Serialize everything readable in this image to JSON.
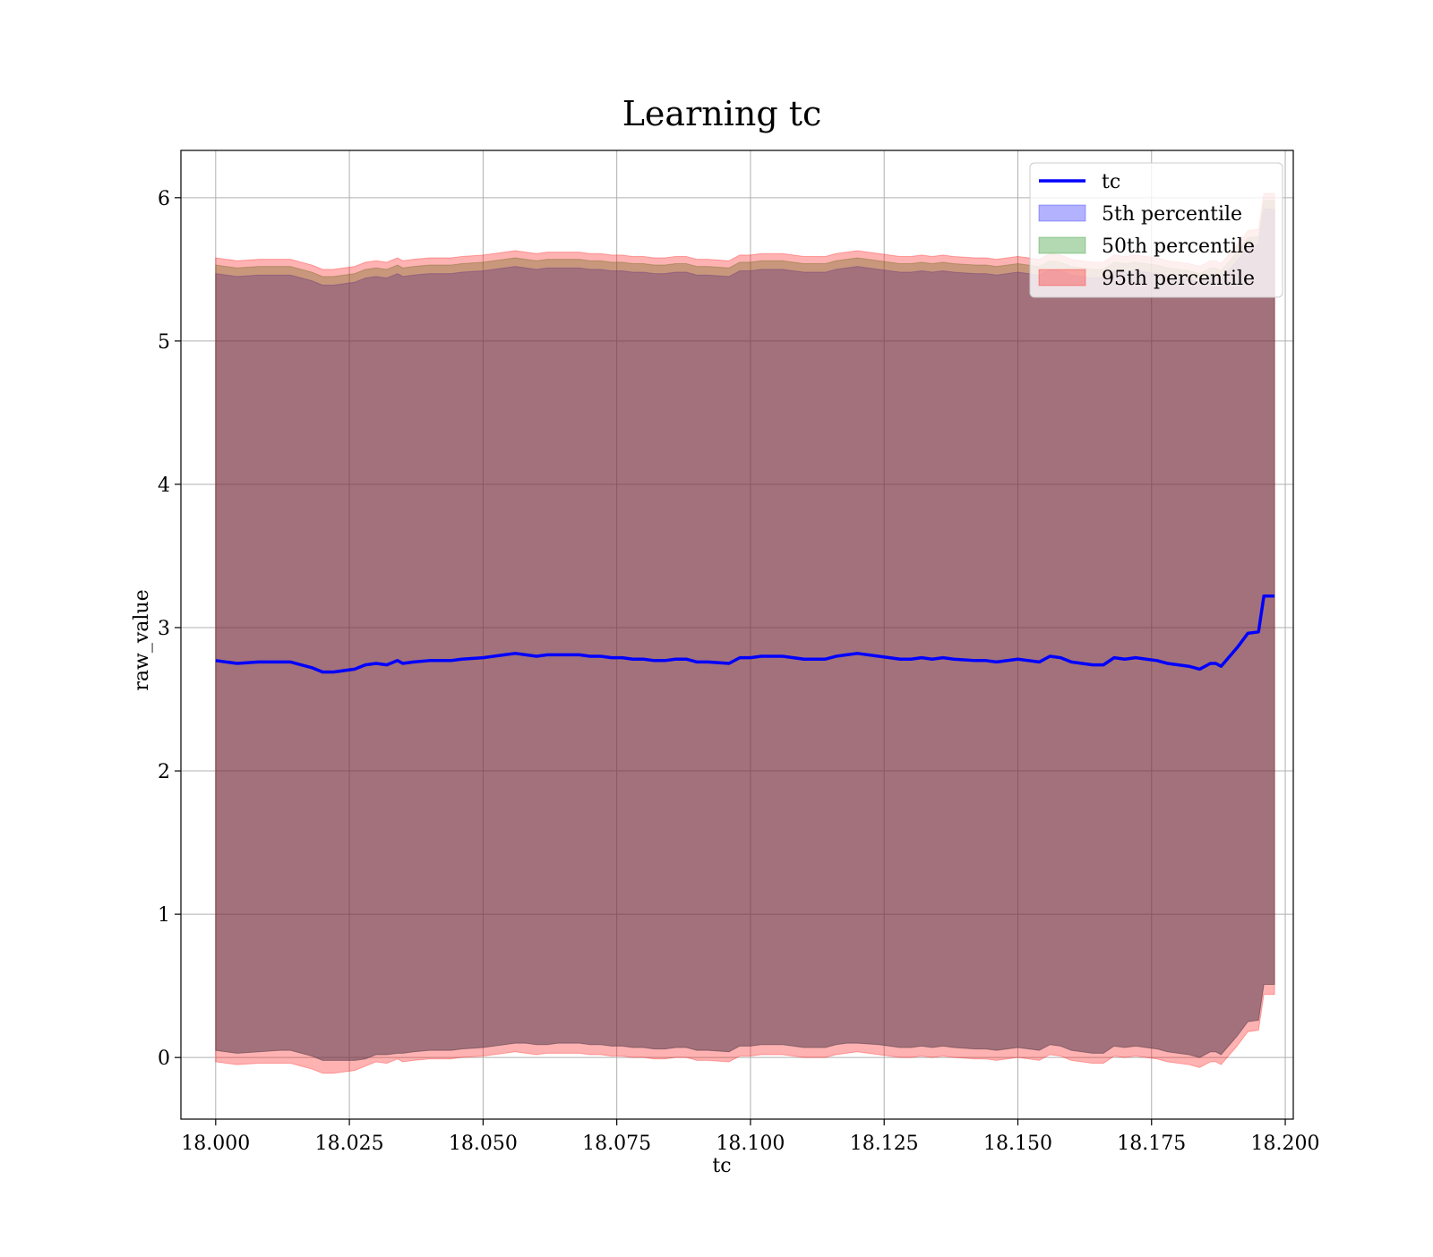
{
  "chart_data": {
    "type": "line",
    "title": "Learning tc",
    "xlabel": "tc",
    "ylabel": "raw_value",
    "xlim": [
      17.9935,
      18.2015
    ],
    "ylim": [
      -0.43,
      6.33
    ],
    "grid": true,
    "legend_position": "top-right",
    "x_ticks": [
      18.0,
      18.025,
      18.05,
      18.075,
      18.1,
      18.125,
      18.15,
      18.175,
      18.2
    ],
    "x_tick_labels": [
      "18.000",
      "18.025",
      "18.050",
      "18.075",
      "18.100",
      "18.125",
      "18.150",
      "18.175",
      "18.200"
    ],
    "y_ticks": [
      0,
      1,
      2,
      3,
      4,
      5,
      6
    ],
    "y_tick_labels": [
      "0",
      "1",
      "2",
      "3",
      "4",
      "5",
      "6"
    ],
    "x": [
      18.0,
      18.004,
      18.008,
      18.012,
      18.014,
      18.018,
      18.02,
      18.022,
      18.026,
      18.028,
      18.03,
      18.032,
      18.034,
      18.035,
      18.037,
      18.04,
      18.044,
      18.046,
      18.05,
      18.052,
      18.054,
      18.056,
      18.058,
      18.06,
      18.062,
      18.064,
      18.066,
      18.068,
      18.07,
      18.072,
      18.074,
      18.076,
      18.078,
      18.08,
      18.082,
      18.084,
      18.086,
      18.088,
      18.09,
      18.092,
      18.096,
      18.098,
      18.1,
      18.102,
      18.104,
      18.106,
      18.108,
      18.11,
      18.112,
      18.114,
      18.116,
      18.118,
      18.12,
      18.124,
      18.128,
      18.13,
      18.132,
      18.134,
      18.136,
      18.138,
      18.142,
      18.144,
      18.146,
      18.15,
      18.154,
      18.156,
      18.158,
      18.16,
      18.162,
      18.164,
      18.166,
      18.168,
      18.17,
      18.172,
      18.174,
      18.176,
      18.178,
      18.182,
      18.184,
      18.186,
      18.187,
      18.188,
      18.191,
      18.193,
      18.195,
      18.196,
      18.197,
      18.198
    ],
    "series": [
      {
        "name": "tc",
        "kind": "line",
        "color": "#0000ff",
        "values": [
          2.77,
          2.75,
          2.76,
          2.76,
          2.76,
          2.72,
          2.69,
          2.69,
          2.71,
          2.74,
          2.75,
          2.74,
          2.77,
          2.75,
          2.76,
          2.77,
          2.77,
          2.78,
          2.79,
          2.8,
          2.81,
          2.82,
          2.81,
          2.8,
          2.81,
          2.81,
          2.81,
          2.81,
          2.8,
          2.8,
          2.79,
          2.79,
          2.78,
          2.78,
          2.77,
          2.77,
          2.78,
          2.78,
          2.76,
          2.76,
          2.75,
          2.79,
          2.79,
          2.8,
          2.8,
          2.8,
          2.79,
          2.78,
          2.78,
          2.78,
          2.8,
          2.81,
          2.82,
          2.8,
          2.78,
          2.78,
          2.79,
          2.78,
          2.79,
          2.78,
          2.77,
          2.77,
          2.76,
          2.78,
          2.76,
          2.8,
          2.79,
          2.76,
          2.75,
          2.74,
          2.74,
          2.79,
          2.78,
          2.79,
          2.78,
          2.77,
          2.75,
          2.73,
          2.71,
          2.75,
          2.75,
          2.73,
          2.86,
          2.96,
          2.97,
          3.22,
          3.22,
          3.22
        ]
      },
      {
        "name": "5th percentile",
        "kind": "band",
        "color": "#0000ff",
        "lower": [
          0.05,
          0.03,
          0.04,
          0.05,
          0.05,
          0.01,
          -0.02,
          -0.02,
          -0.02,
          -0.01,
          0.02,
          0.02,
          0.03,
          0.03,
          0.04,
          0.05,
          0.05,
          0.06,
          0.07,
          0.08,
          0.09,
          0.1,
          0.1,
          0.09,
          0.09,
          0.1,
          0.1,
          0.1,
          0.09,
          0.09,
          0.08,
          0.08,
          0.07,
          0.07,
          0.06,
          0.06,
          0.07,
          0.07,
          0.05,
          0.05,
          0.04,
          0.08,
          0.08,
          0.09,
          0.09,
          0.09,
          0.08,
          0.07,
          0.07,
          0.07,
          0.09,
          0.1,
          0.1,
          0.09,
          0.07,
          0.07,
          0.08,
          0.07,
          0.08,
          0.07,
          0.06,
          0.06,
          0.05,
          0.07,
          0.05,
          0.09,
          0.08,
          0.05,
          0.04,
          0.03,
          0.03,
          0.08,
          0.07,
          0.08,
          0.07,
          0.06,
          0.04,
          0.02,
          0.0,
          0.04,
          0.04,
          0.02,
          0.15,
          0.25,
          0.26,
          0.51,
          0.51,
          0.51
        ],
        "upper": [
          5.47,
          5.45,
          5.46,
          5.46,
          5.46,
          5.42,
          5.39,
          5.39,
          5.41,
          5.44,
          5.45,
          5.44,
          5.47,
          5.45,
          5.46,
          5.47,
          5.47,
          5.48,
          5.49,
          5.5,
          5.51,
          5.52,
          5.51,
          5.5,
          5.51,
          5.51,
          5.51,
          5.51,
          5.5,
          5.5,
          5.49,
          5.49,
          5.48,
          5.48,
          5.47,
          5.47,
          5.48,
          5.48,
          5.46,
          5.46,
          5.45,
          5.49,
          5.49,
          5.5,
          5.5,
          5.5,
          5.49,
          5.48,
          5.48,
          5.48,
          5.5,
          5.51,
          5.52,
          5.5,
          5.48,
          5.48,
          5.49,
          5.48,
          5.49,
          5.48,
          5.47,
          5.47,
          5.46,
          5.48,
          5.46,
          5.5,
          5.49,
          5.46,
          5.45,
          5.44,
          5.44,
          5.49,
          5.48,
          5.49,
          5.48,
          5.47,
          5.45,
          5.43,
          5.41,
          5.45,
          5.45,
          5.43,
          5.56,
          5.66,
          5.67,
          5.92,
          5.92,
          5.92
        ]
      },
      {
        "name": "50th percentile",
        "kind": "band",
        "color": "#008000",
        "lower": [
          0.05,
          0.03,
          0.04,
          0.05,
          0.05,
          0.01,
          -0.02,
          -0.02,
          -0.02,
          -0.01,
          0.02,
          0.02,
          0.03,
          0.03,
          0.04,
          0.05,
          0.05,
          0.06,
          0.07,
          0.08,
          0.09,
          0.1,
          0.1,
          0.09,
          0.09,
          0.1,
          0.1,
          0.1,
          0.09,
          0.09,
          0.08,
          0.08,
          0.07,
          0.07,
          0.06,
          0.06,
          0.07,
          0.07,
          0.05,
          0.05,
          0.04,
          0.08,
          0.08,
          0.09,
          0.09,
          0.09,
          0.08,
          0.07,
          0.07,
          0.07,
          0.09,
          0.1,
          0.1,
          0.09,
          0.07,
          0.07,
          0.08,
          0.07,
          0.08,
          0.07,
          0.06,
          0.06,
          0.05,
          0.07,
          0.05,
          0.09,
          0.08,
          0.05,
          0.04,
          0.03,
          0.03,
          0.08,
          0.07,
          0.08,
          0.07,
          0.06,
          0.04,
          0.02,
          0.0,
          0.04,
          0.04,
          0.02,
          0.15,
          0.25,
          0.26,
          0.51,
          0.51,
          0.51
        ],
        "upper": [
          5.53,
          5.51,
          5.52,
          5.52,
          5.52,
          5.48,
          5.45,
          5.45,
          5.47,
          5.5,
          5.51,
          5.5,
          5.53,
          5.51,
          5.52,
          5.53,
          5.53,
          5.54,
          5.55,
          5.56,
          5.57,
          5.58,
          5.57,
          5.56,
          5.57,
          5.57,
          5.57,
          5.57,
          5.56,
          5.56,
          5.55,
          5.55,
          5.54,
          5.54,
          5.53,
          5.53,
          5.54,
          5.54,
          5.52,
          5.52,
          5.51,
          5.55,
          5.55,
          5.56,
          5.56,
          5.56,
          5.55,
          5.54,
          5.54,
          5.54,
          5.56,
          5.57,
          5.58,
          5.56,
          5.54,
          5.54,
          5.55,
          5.54,
          5.55,
          5.54,
          5.53,
          5.53,
          5.52,
          5.54,
          5.52,
          5.56,
          5.55,
          5.52,
          5.51,
          5.5,
          5.5,
          5.55,
          5.54,
          5.55,
          5.54,
          5.53,
          5.51,
          5.49,
          5.47,
          5.51,
          5.51,
          5.49,
          5.62,
          5.72,
          5.73,
          5.98,
          5.98,
          5.98
        ]
      },
      {
        "name": "95th percentile",
        "kind": "band",
        "color": "#ff0000",
        "lower": [
          -0.03,
          -0.05,
          -0.04,
          -0.04,
          -0.04,
          -0.08,
          -0.11,
          -0.11,
          -0.09,
          -0.06,
          -0.03,
          -0.04,
          -0.01,
          -0.03,
          -0.02,
          -0.01,
          -0.01,
          0.0,
          0.01,
          0.02,
          0.03,
          0.04,
          0.03,
          0.02,
          0.03,
          0.03,
          0.03,
          0.03,
          0.02,
          0.02,
          0.01,
          0.01,
          0.0,
          0.0,
          -0.01,
          -0.01,
          0.0,
          0.0,
          -0.02,
          -0.02,
          -0.03,
          0.01,
          0.01,
          0.02,
          0.02,
          0.02,
          0.01,
          0.0,
          0.0,
          0.0,
          0.02,
          0.03,
          0.04,
          0.02,
          0.0,
          0.0,
          0.01,
          0.0,
          0.01,
          0.0,
          -0.01,
          -0.01,
          -0.02,
          0.0,
          -0.02,
          0.02,
          0.01,
          -0.02,
          -0.03,
          -0.04,
          -0.04,
          0.01,
          0.0,
          0.01,
          0.0,
          -0.01,
          -0.03,
          -0.05,
          -0.07,
          -0.03,
          -0.03,
          -0.05,
          0.08,
          0.18,
          0.19,
          0.44,
          0.44,
          0.44
        ],
        "upper": [
          5.58,
          5.56,
          5.57,
          5.57,
          5.57,
          5.53,
          5.5,
          5.5,
          5.52,
          5.55,
          5.56,
          5.55,
          5.58,
          5.56,
          5.57,
          5.58,
          5.58,
          5.59,
          5.6,
          5.61,
          5.62,
          5.63,
          5.62,
          5.61,
          5.62,
          5.62,
          5.62,
          5.62,
          5.61,
          5.61,
          5.6,
          5.6,
          5.59,
          5.59,
          5.58,
          5.58,
          5.59,
          5.59,
          5.57,
          5.57,
          5.56,
          5.6,
          5.6,
          5.61,
          5.61,
          5.61,
          5.6,
          5.59,
          5.59,
          5.59,
          5.61,
          5.62,
          5.63,
          5.61,
          5.59,
          5.59,
          5.6,
          5.59,
          5.6,
          5.59,
          5.58,
          5.58,
          5.57,
          5.59,
          5.57,
          5.61,
          5.6,
          5.57,
          5.56,
          5.55,
          5.55,
          5.6,
          5.59,
          5.6,
          5.59,
          5.58,
          5.56,
          5.54,
          5.52,
          5.56,
          5.56,
          5.54,
          5.67,
          5.77,
          5.78,
          6.03,
          6.03,
          6.03
        ]
      }
    ]
  }
}
